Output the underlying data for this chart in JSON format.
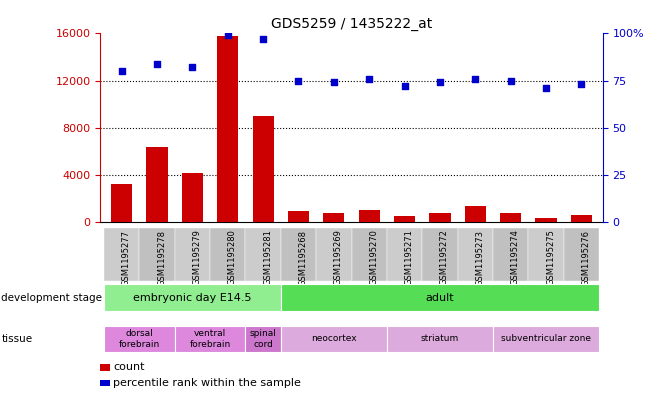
{
  "title": "GDS5259 / 1435222_at",
  "samples": [
    "GSM1195277",
    "GSM1195278",
    "GSM1195279",
    "GSM1195280",
    "GSM1195281",
    "GSM1195268",
    "GSM1195269",
    "GSM1195270",
    "GSM1195271",
    "GSM1195272",
    "GSM1195273",
    "GSM1195274",
    "GSM1195275",
    "GSM1195276"
  ],
  "counts": [
    3200,
    6400,
    4200,
    15800,
    9000,
    900,
    800,
    1000,
    500,
    800,
    1400,
    750,
    350,
    600
  ],
  "percentiles": [
    80,
    84,
    82,
    99,
    97,
    75,
    74,
    76,
    72,
    74,
    76,
    75,
    71,
    73
  ],
  "ylim_left": [
    0,
    16000
  ],
  "ylim_right": [
    0,
    100
  ],
  "yticks_left": [
    0,
    4000,
    8000,
    12000,
    16000
  ],
  "yticks_right": [
    0,
    25,
    50,
    75,
    100
  ],
  "bar_color": "#cc0000",
  "dot_color": "#0000cc",
  "background_color": "#ffffff",
  "grid_lines": [
    4000,
    8000,
    12000
  ],
  "dev_stage_groups": [
    {
      "label": "embryonic day E14.5",
      "start": 0,
      "end": 5,
      "color": "#90ee90"
    },
    {
      "label": "adult",
      "start": 5,
      "end": 14,
      "color": "#55dd55"
    }
  ],
  "tissue_groups": [
    {
      "label": "dorsal\nforebrain",
      "start": 0,
      "end": 2,
      "color": "#dd88dd"
    },
    {
      "label": "ventral\nforebrain",
      "start": 2,
      "end": 4,
      "color": "#dd88dd"
    },
    {
      "label": "spinal\ncord",
      "start": 4,
      "end": 5,
      "color": "#cc77cc"
    },
    {
      "label": "neocortex",
      "start": 5,
      "end": 8,
      "color": "#ddaadd"
    },
    {
      "label": "striatum",
      "start": 8,
      "end": 11,
      "color": "#ddaadd"
    },
    {
      "label": "subventricular zone",
      "start": 11,
      "end": 14,
      "color": "#ddaadd"
    }
  ],
  "tick_bg_color": "#cccccc",
  "legend_count_label": "count",
  "legend_pct_label": "percentile rank within the sample",
  "dev_stage_label": "development stage",
  "tissue_label": "tissue"
}
